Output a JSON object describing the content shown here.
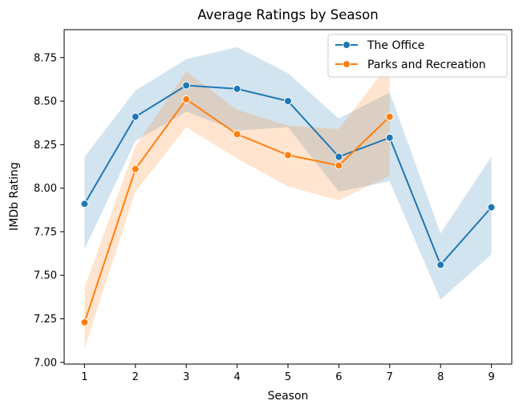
{
  "chart_data": {
    "type": "line",
    "title": "Average Ratings by Season",
    "xlabel": "Season",
    "ylabel": "IMDb Rating",
    "x": [
      1,
      2,
      3,
      4,
      5,
      6,
      7,
      8,
      9
    ],
    "xlim": [
      0.6,
      9.4
    ],
    "ylim": [
      6.99,
      8.91
    ],
    "yticks": [
      7.0,
      7.25,
      7.5,
      7.75,
      8.0,
      8.25,
      8.5,
      8.75
    ],
    "ytick_labels": [
      "7.00",
      "7.25",
      "7.50",
      "7.75",
      "8.00",
      "8.25",
      "8.50",
      "8.75"
    ],
    "xtick_labels": [
      "1",
      "2",
      "3",
      "4",
      "5",
      "6",
      "7",
      "8",
      "9"
    ],
    "legend_position": "top-right",
    "grid": false,
    "series": [
      {
        "name": "The Office",
        "color": "#1f77b4",
        "x": [
          1,
          2,
          3,
          4,
          5,
          6,
          7,
          8,
          9
        ],
        "values": [
          7.91,
          8.41,
          8.59,
          8.57,
          8.5,
          8.18,
          8.29,
          7.56,
          7.89
        ],
        "ci_low": [
          7.65,
          8.27,
          8.44,
          8.33,
          8.35,
          7.98,
          8.04,
          7.36,
          7.62
        ],
        "ci_high": [
          8.18,
          8.56,
          8.74,
          8.81,
          8.66,
          8.4,
          8.55,
          7.74,
          8.18
        ]
      },
      {
        "name": "Parks and Recreation",
        "color": "#ff7f0e",
        "x": [
          1,
          2,
          3,
          4,
          5,
          6,
          7
        ],
        "values": [
          7.23,
          8.11,
          8.51,
          8.31,
          8.19,
          8.13,
          8.41
        ],
        "ci_low": [
          7.08,
          7.98,
          8.35,
          8.17,
          8.01,
          7.93,
          8.07
        ],
        "ci_high": [
          7.43,
          8.24,
          8.67,
          8.45,
          8.36,
          8.34,
          8.72
        ]
      }
    ]
  }
}
